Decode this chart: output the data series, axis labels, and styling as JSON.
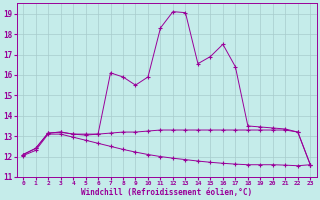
{
  "xlabel": "Windchill (Refroidissement éolien,°C)",
  "bg_color": "#c5ecea",
  "line_color": "#990099",
  "grid_color": "#a8cccc",
  "hours": [
    0,
    1,
    2,
    3,
    4,
    5,
    6,
    7,
    8,
    9,
    10,
    11,
    12,
    13,
    14,
    15,
    16,
    17,
    18,
    19,
    20,
    21,
    22,
    23
  ],
  "line1_upper": [
    12.1,
    12.4,
    13.15,
    13.2,
    13.1,
    13.05,
    13.1,
    16.1,
    15.9,
    15.5,
    15.9,
    18.3,
    19.1,
    19.05,
    16.55,
    16.9,
    17.5,
    16.4,
    13.5,
    13.45,
    13.4,
    13.35,
    13.2,
    11.6
  ],
  "line2_flat": [
    12.1,
    12.4,
    13.15,
    13.2,
    13.1,
    13.1,
    13.1,
    13.15,
    13.2,
    13.2,
    13.25,
    13.3,
    13.3,
    13.3,
    13.3,
    13.3,
    13.3,
    13.3,
    13.3,
    13.3,
    13.3,
    13.3,
    13.2,
    11.6
  ],
  "line3_decline": [
    12.05,
    12.3,
    13.1,
    13.1,
    12.95,
    12.8,
    12.65,
    12.5,
    12.35,
    12.22,
    12.1,
    12.0,
    11.92,
    11.85,
    11.78,
    11.72,
    11.67,
    11.63,
    11.6,
    11.6,
    11.6,
    11.58,
    11.55,
    11.6
  ],
  "ylim": [
    11,
    19.5
  ],
  "xlim": [
    -0.5,
    23.5
  ],
  "yticks": [
    11,
    12,
    13,
    14,
    15,
    16,
    17,
    18,
    19
  ],
  "xticks": [
    0,
    1,
    2,
    3,
    4,
    5,
    6,
    7,
    8,
    9,
    10,
    11,
    12,
    13,
    14,
    15,
    16,
    17,
    18,
    19,
    20,
    21,
    22,
    23
  ]
}
